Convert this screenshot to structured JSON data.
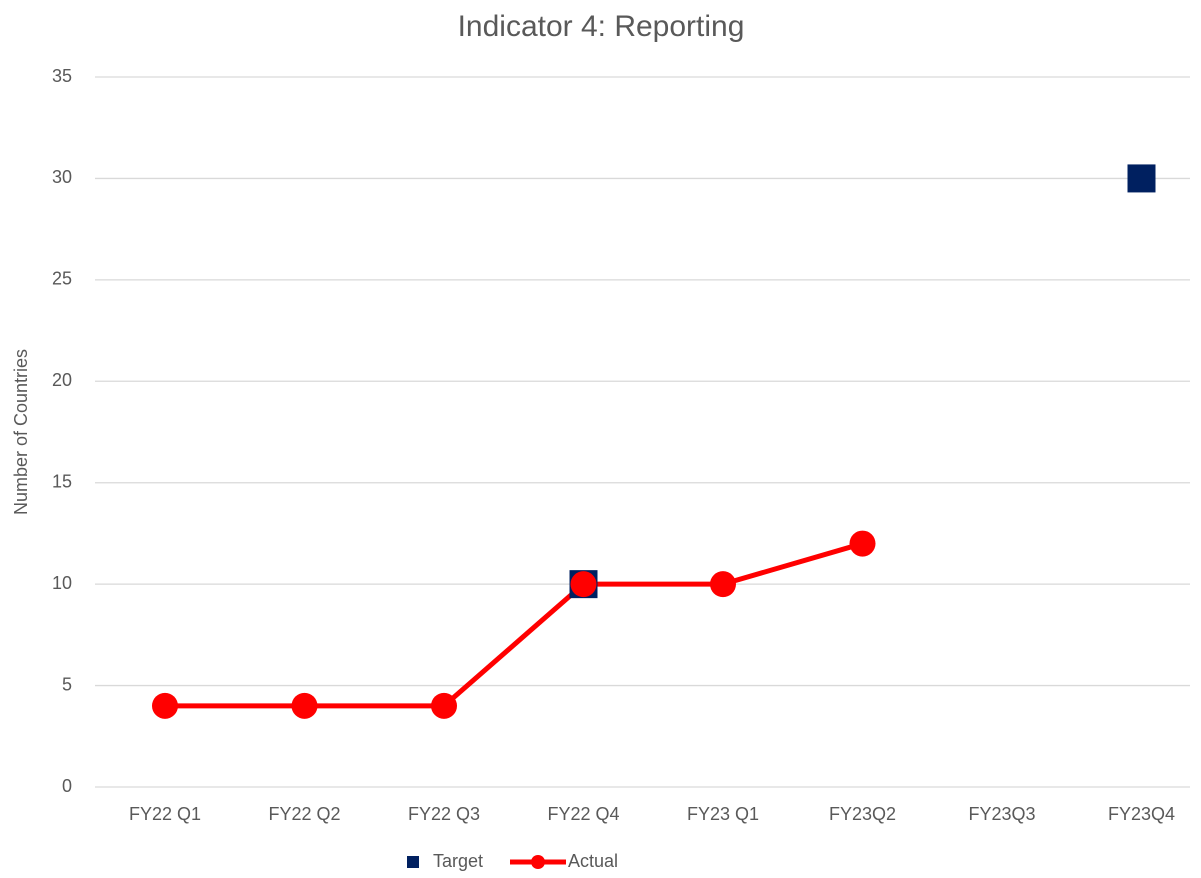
{
  "chart_data": {
    "type": "line",
    "title": "Indicator 4: Reporting",
    "y_label": "Number of Countries",
    "categories": [
      "FY22 Q1",
      "FY22 Q2",
      "FY22 Q3",
      "FY22 Q4",
      "FY23 Q1",
      "FY23Q2",
      "FY23Q3",
      "FY23Q4"
    ],
    "series": [
      {
        "name": "Target",
        "color": "#002060",
        "line": false,
        "marker": "square",
        "values": [
          null,
          null,
          null,
          10,
          null,
          null,
          null,
          30
        ]
      },
      {
        "name": "Actual",
        "color": "#ff0000",
        "line": true,
        "marker": "circle",
        "values": [
          4,
          4,
          4,
          10,
          10,
          12,
          null,
          null
        ]
      }
    ],
    "ylim": [
      0,
      35
    ],
    "yticks": [
      0,
      5,
      10,
      15,
      20,
      25,
      30,
      35
    ],
    "grid": true,
    "legend": "bottom"
  }
}
